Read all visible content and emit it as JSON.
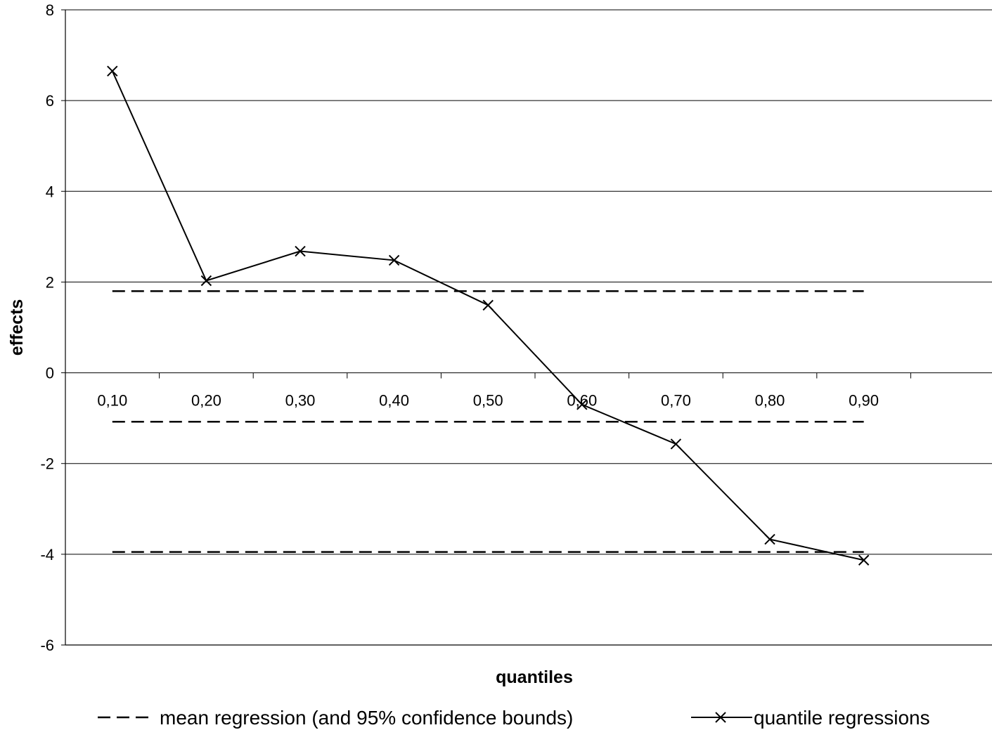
{
  "chart_data": {
    "type": "line",
    "xlabel": "quantiles",
    "ylabel": "effects",
    "categories": [
      "0,10",
      "0,20",
      "0,30",
      "0,40",
      "0,50",
      "0,60",
      "0,70",
      "0,80",
      "0,90"
    ],
    "ylim": [
      -6,
      8
    ],
    "yticks": [
      -6,
      -4,
      -2,
      0,
      2,
      4,
      6,
      8
    ],
    "grid": "horizontal",
    "legend_position": "bottom",
    "series": [
      {
        "name": "quantile regressions",
        "style": "solid line with x markers",
        "values": [
          6.65,
          2.03,
          2.68,
          2.48,
          1.49,
          -0.7,
          -1.57,
          -3.67,
          -4.13
        ]
      },
      {
        "name": "mean regression (and 95% confidence bounds)",
        "style": "dashed",
        "lines": [
          1.8,
          -1.08,
          -3.95
        ]
      }
    ],
    "legend": {
      "dashed_label": "mean regression (and 95% confidence bounds)",
      "solid_label": "quantile regressions"
    },
    "colors": {
      "line": "#000000",
      "grid": "#000000",
      "background": "#ffffff"
    }
  }
}
